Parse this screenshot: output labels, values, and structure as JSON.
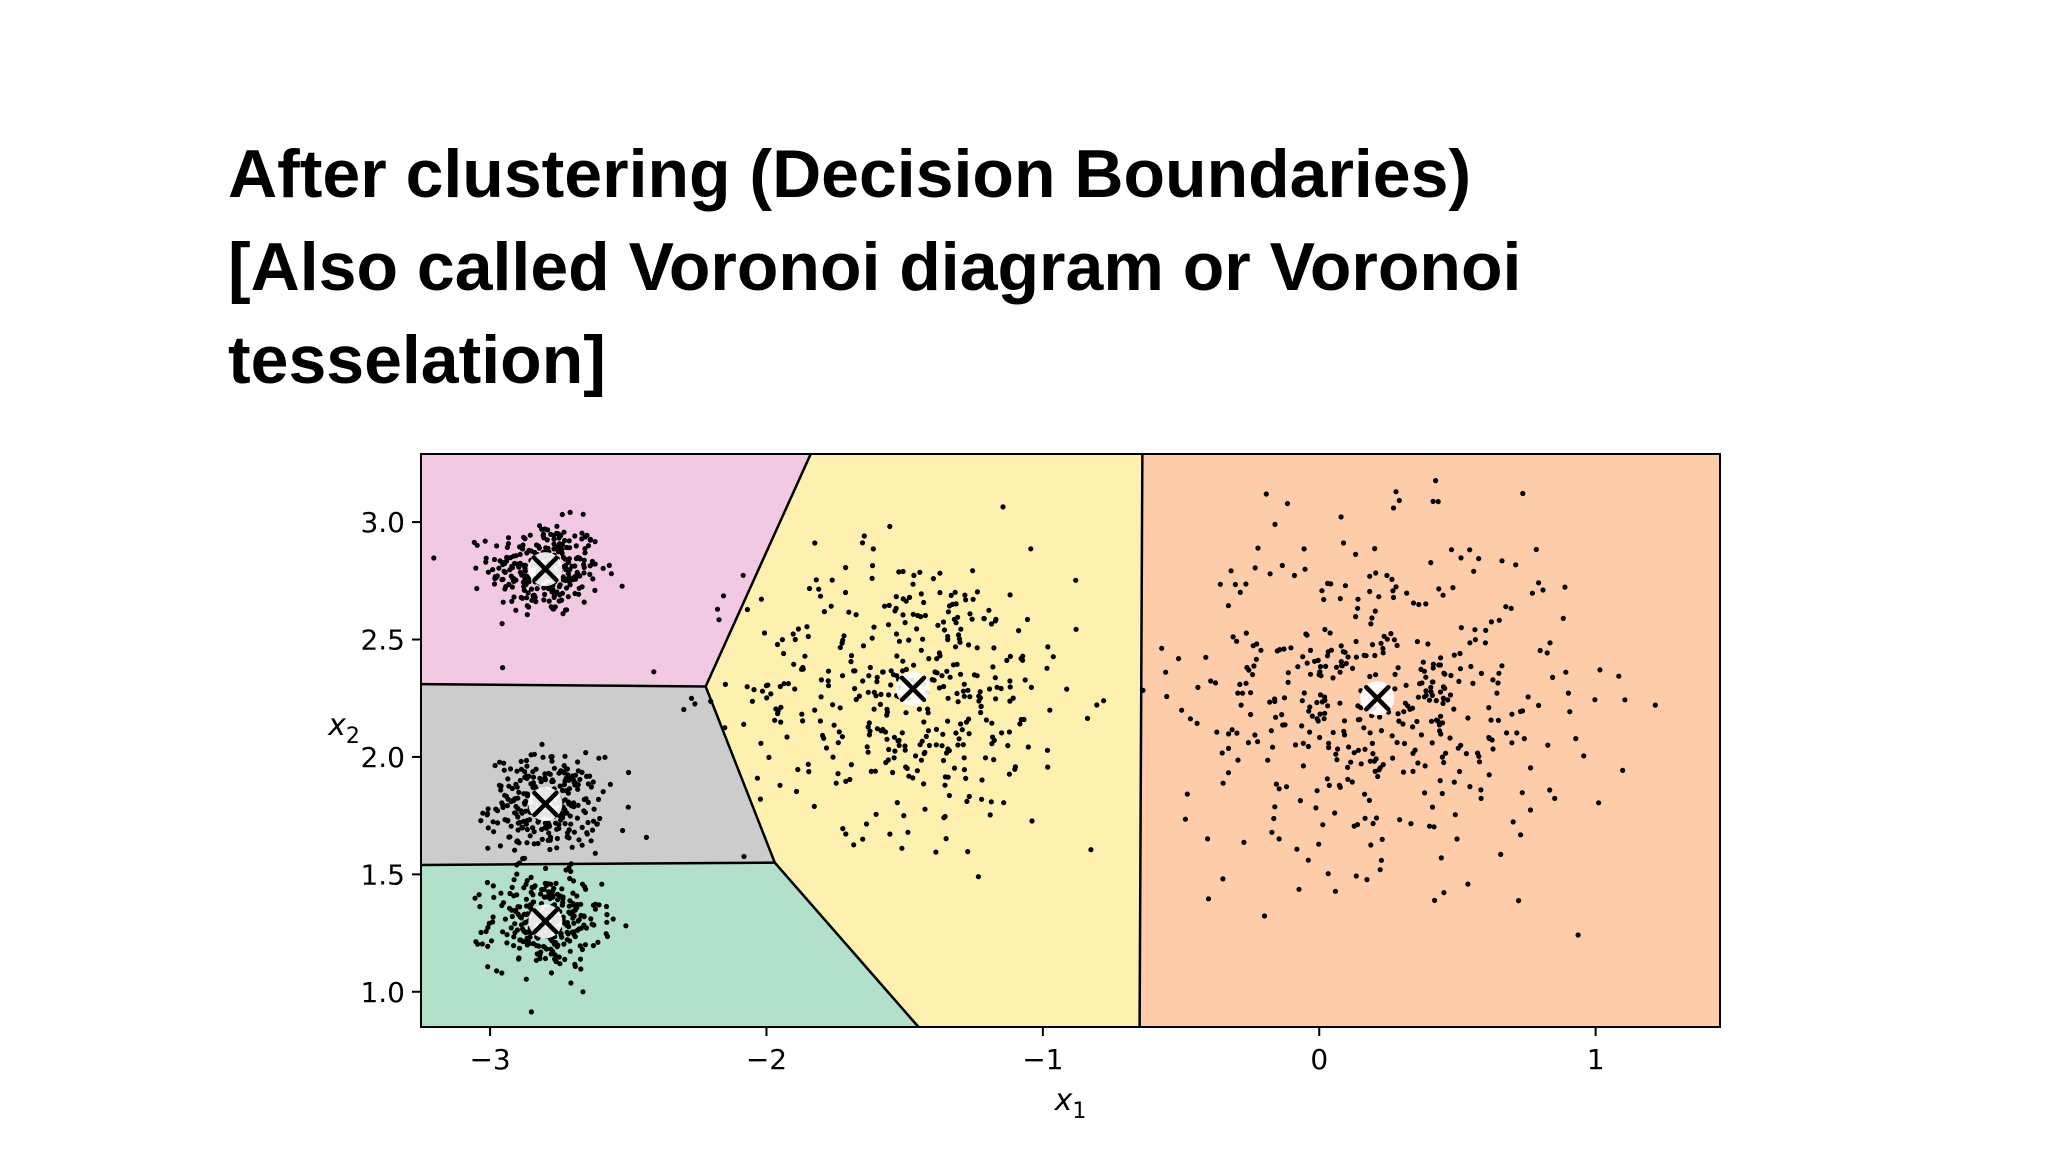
{
  "slide": {
    "title_lines": [
      "After clustering (Decision Boundaries)",
      "[Also called Voronoi diagram or Voronoi",
      "tesselation]"
    ]
  },
  "chart_data": {
    "type": "scatter",
    "subtype": "voronoi-decision-boundaries",
    "xlabel": "x",
    "xlabel_sub": "1",
    "ylabel": "x",
    "ylabel_sub": "2",
    "xlim": [
      -3.25,
      1.45
    ],
    "ylim": [
      0.85,
      3.29
    ],
    "xticks": [
      -3,
      -2,
      -1,
      0,
      1
    ],
    "xtick_labels": [
      "−3",
      "−2",
      "−1",
      "0",
      "1"
    ],
    "yticks": [
      1.0,
      1.5,
      2.0,
      2.5,
      3.0
    ],
    "ytick_labels": [
      "1.0",
      "1.5",
      "2.0",
      "2.5",
      "3.0"
    ],
    "grid": false,
    "legend": false,
    "regions": [
      {
        "color": "#f2c9e3",
        "vertices": [
          [
            -3.25,
            3.29
          ],
          [
            -1.84,
            3.29
          ],
          [
            -2.22,
            2.3
          ],
          [
            -3.25,
            2.31
          ]
        ]
      },
      {
        "color": "#cccccc",
        "vertices": [
          [
            -3.25,
            2.31
          ],
          [
            -2.22,
            2.3
          ],
          [
            -1.97,
            1.55
          ],
          [
            -3.25,
            1.54
          ]
        ]
      },
      {
        "color": "#b2e0ca",
        "vertices": [
          [
            -3.25,
            1.54
          ],
          [
            -1.97,
            1.55
          ],
          [
            -1.45,
            0.85
          ],
          [
            -3.25,
            0.85
          ]
        ]
      },
      {
        "color": "#fef0ae",
        "vertices": [
          [
            -1.84,
            3.29
          ],
          [
            -0.64,
            3.29
          ],
          [
            -0.65,
            0.85
          ],
          [
            -1.45,
            0.85
          ],
          [
            -1.97,
            1.55
          ],
          [
            -2.22,
            2.3
          ]
        ]
      },
      {
        "color": "#fdcca9",
        "vertices": [
          [
            -0.64,
            3.29
          ],
          [
            1.45,
            3.29
          ],
          [
            1.45,
            0.85
          ],
          [
            -0.65,
            0.85
          ]
        ]
      }
    ],
    "boundaries": [
      [
        [
          -1.84,
          3.29
        ],
        [
          -2.22,
          2.3
        ]
      ],
      [
        [
          -3.25,
          2.31
        ],
        [
          -2.22,
          2.3
        ]
      ],
      [
        [
          -2.22,
          2.3
        ],
        [
          -1.97,
          1.55
        ]
      ],
      [
        [
          -3.25,
          1.54
        ],
        [
          -1.97,
          1.55
        ]
      ],
      [
        [
          -1.97,
          1.55
        ],
        [
          -1.45,
          0.85
        ]
      ],
      [
        [
          -0.64,
          3.29
        ],
        [
          -0.65,
          0.85
        ]
      ]
    ],
    "centroids": [
      {
        "x": -2.8,
        "y": 2.8
      },
      {
        "x": -2.8,
        "y": 1.8
      },
      {
        "x": -2.8,
        "y": 1.3
      },
      {
        "x": -1.47,
        "y": 2.29
      },
      {
        "x": 0.21,
        "y": 2.25
      }
    ],
    "blobs": [
      {
        "cx": -2.8,
        "cy": 2.8,
        "sx": 0.1,
        "sy": 0.1,
        "n": 300
      },
      {
        "cx": -2.8,
        "cy": 1.8,
        "sx": 0.1,
        "sy": 0.1,
        "n": 300
      },
      {
        "cx": -2.8,
        "cy": 1.3,
        "sx": 0.1,
        "sy": 0.1,
        "n": 300
      },
      {
        "cx": -1.47,
        "cy": 2.29,
        "sx": 0.3,
        "sy": 0.3,
        "n": 400
      },
      {
        "cx": 0.21,
        "cy": 2.25,
        "sx": 0.35,
        "sy": 0.35,
        "n": 450
      }
    ],
    "colors": {
      "point": "#000000",
      "centroid_marker": "#000000",
      "centroid_halo": "#ffffff",
      "boundary": "#000000"
    }
  }
}
